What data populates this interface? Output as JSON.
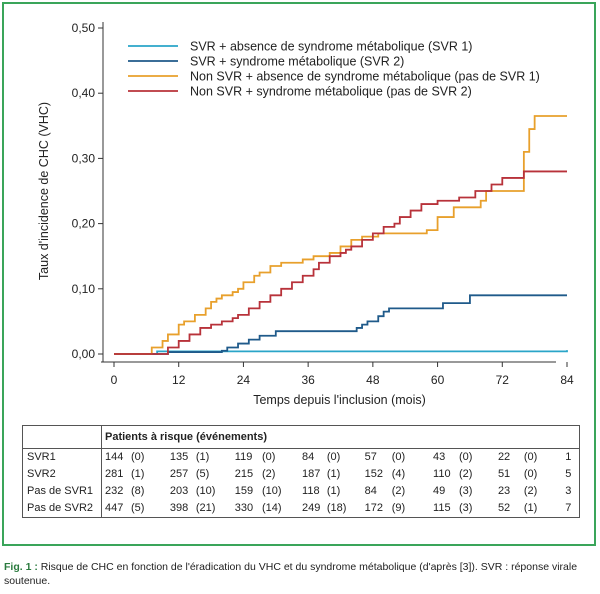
{
  "chart_data": {
    "type": "line",
    "xlabel": "Temps depuis l'inclusion (mois)",
    "ylabel": "Taux d'incidence de CHC (VHC)",
    "xlim": [
      0,
      84
    ],
    "ylim": [
      0,
      0.5
    ],
    "xticks": [
      "0",
      "12",
      "24",
      "36",
      "48",
      "60",
      "72",
      "84"
    ],
    "yticks": [
      "0,00",
      "0,10",
      "0,20",
      "0,30",
      "0,40",
      "0,50"
    ],
    "legend_position": "top-left",
    "series": [
      {
        "name": "SVR + absence de syndrome métabolique  (SVR 1)",
        "color": "#2aa5c8",
        "points": [
          [
            0,
            0
          ],
          [
            6,
            0
          ],
          [
            8,
            0.004
          ],
          [
            84,
            0.006
          ]
        ]
      },
      {
        "name": "SVR + syndrome métabolique (SVR 2)",
        "color": "#1f5a8a",
        "points": [
          [
            0,
            0
          ],
          [
            8,
            0
          ],
          [
            10,
            0.003
          ],
          [
            20,
            0.005
          ],
          [
            21,
            0.01
          ],
          [
            23,
            0.016
          ],
          [
            25,
            0.022
          ],
          [
            27,
            0.028
          ],
          [
            30,
            0.035
          ],
          [
            44,
            0.035
          ],
          [
            45,
            0.04
          ],
          [
            46,
            0.045
          ],
          [
            47,
            0.05
          ],
          [
            49,
            0.058
          ],
          [
            50,
            0.065
          ],
          [
            51,
            0.07
          ],
          [
            60,
            0.07
          ],
          [
            61,
            0.078
          ],
          [
            65,
            0.078
          ],
          [
            66,
            0.09
          ],
          [
            84,
            0.09
          ]
        ]
      },
      {
        "name": "Non SVR + absence de syndrome métabolique (pas de SVR 1)",
        "color": "#e8a02c",
        "points": [
          [
            0,
            0
          ],
          [
            6,
            0
          ],
          [
            7,
            0.01
          ],
          [
            9,
            0.02
          ],
          [
            10,
            0.03
          ],
          [
            12,
            0.045
          ],
          [
            13,
            0.05
          ],
          [
            15,
            0.06
          ],
          [
            17,
            0.07
          ],
          [
            18,
            0.08
          ],
          [
            19,
            0.085
          ],
          [
            20,
            0.09
          ],
          [
            22,
            0.095
          ],
          [
            23,
            0.1
          ],
          [
            24,
            0.11
          ],
          [
            26,
            0.12
          ],
          [
            27,
            0.125
          ],
          [
            29,
            0.135
          ],
          [
            31,
            0.14
          ],
          [
            35,
            0.145
          ],
          [
            37,
            0.15
          ],
          [
            40,
            0.155
          ],
          [
            42,
            0.165
          ],
          [
            44,
            0.175
          ],
          [
            46,
            0.18
          ],
          [
            49,
            0.185
          ],
          [
            58,
            0.19
          ],
          [
            60,
            0.21
          ],
          [
            63,
            0.225
          ],
          [
            68,
            0.235
          ],
          [
            69,
            0.25
          ],
          [
            75,
            0.25
          ],
          [
            76,
            0.31
          ],
          [
            77,
            0.345
          ],
          [
            78,
            0.365
          ],
          [
            84,
            0.365
          ]
        ]
      },
      {
        "name": "Non SVR + syndrome métabolique (pas de SVR 2)",
        "color": "#b8323a",
        "points": [
          [
            0,
            0
          ],
          [
            9,
            0
          ],
          [
            10,
            0.01
          ],
          [
            12,
            0.02
          ],
          [
            14,
            0.03
          ],
          [
            16,
            0.04
          ],
          [
            18,
            0.045
          ],
          [
            20,
            0.05
          ],
          [
            22,
            0.055
          ],
          [
            23,
            0.06
          ],
          [
            25,
            0.07
          ],
          [
            27,
            0.08
          ],
          [
            29,
            0.09
          ],
          [
            31,
            0.1
          ],
          [
            33,
            0.11
          ],
          [
            35,
            0.12
          ],
          [
            37,
            0.13
          ],
          [
            38,
            0.14
          ],
          [
            40,
            0.15
          ],
          [
            42,
            0.155
          ],
          [
            43,
            0.16
          ],
          [
            44,
            0.165
          ],
          [
            46,
            0.175
          ],
          [
            48,
            0.185
          ],
          [
            50,
            0.195
          ],
          [
            52,
            0.2
          ],
          [
            53,
            0.21
          ],
          [
            55,
            0.22
          ],
          [
            57,
            0.23
          ],
          [
            60,
            0.235
          ],
          [
            64,
            0.24
          ],
          [
            67,
            0.25
          ],
          [
            70,
            0.26
          ],
          [
            72,
            0.27
          ],
          [
            76,
            0.28
          ],
          [
            84,
            0.28
          ]
        ]
      }
    ]
  },
  "risk_table": {
    "title": "Patients à risque (événements)",
    "rows": [
      {
        "label": "SVR1",
        "cells": [
          "144",
          "(0)",
          "135",
          "(1)",
          "119",
          "(0)",
          "84",
          "(0)",
          "57",
          "(0)",
          "43",
          "(0)",
          "22",
          "(0)",
          "1"
        ]
      },
      {
        "label": "SVR2",
        "cells": [
          "281",
          "(1)",
          "257",
          "(5)",
          "215",
          "(2)",
          "187",
          "(1)",
          "152",
          "(4)",
          "110",
          "(2)",
          "51",
          "(0)",
          "5"
        ]
      },
      {
        "label": "Pas de SVR1",
        "cells": [
          "232",
          "(8)",
          "203",
          "(10)",
          "159",
          "(10)",
          "118",
          "(1)",
          "84",
          "(2)",
          "49",
          "(3)",
          "23",
          "(2)",
          "3"
        ]
      },
      {
        "label": "Pas de SVR2",
        "cells": [
          "447",
          "(5)",
          "398",
          "(21)",
          "330",
          "(14)",
          "249",
          "(18)",
          "172",
          "(9)",
          "115",
          "(3)",
          "52",
          "(1)",
          "7"
        ]
      }
    ]
  },
  "caption": {
    "label": "Fig. 1 :",
    "text": " Risque de CHC en fonction de l'éradication du VHC et du syndrome métabolique (d'après [3]). SVR : réponse virale soutenue."
  }
}
